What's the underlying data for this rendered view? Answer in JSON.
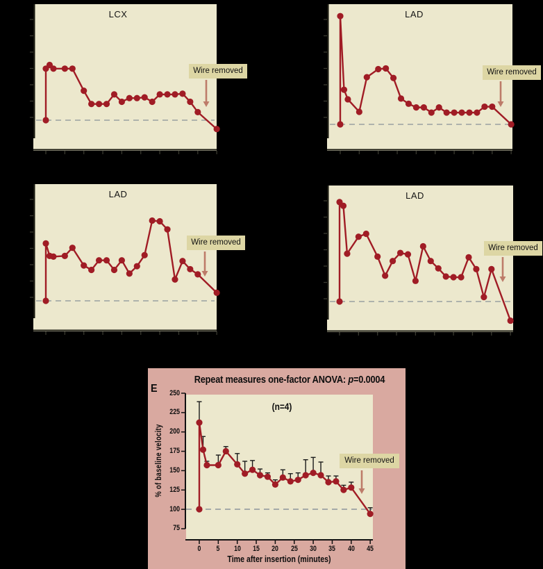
{
  "labels": {
    "wire_removed": "Wire removed"
  },
  "colors": {
    "background": "#000000",
    "panel_bg": "#ece8cd",
    "pink_panel_bg": "#d9a9a0",
    "annotation_bg": "#ddd6a4",
    "series_red": "#a01c25",
    "arrow": "#bd7b69",
    "baseline_dash": "#9aa0a2",
    "axis": "#17170f",
    "error_bar": "#1a1a1a"
  },
  "anova_panel": {
    "panel_letter": "E",
    "title_prefix": "Repeat measures one-factor ANOVA: ",
    "title_p_symbol": "p",
    "title_p_value": "=0.0004",
    "sample_size": "(n=4)",
    "ylabel": "% of baseline velocity",
    "xlabel": "Time after insertion (minutes)"
  },
  "chart_data": [
    {
      "position": "top-left",
      "type": "line",
      "title": "LCX",
      "x_minutes": [
        0,
        0,
        1,
        2,
        5,
        7,
        10,
        12,
        14,
        16,
        18,
        20,
        22,
        24,
        26,
        28,
        30,
        32,
        34,
        36,
        38,
        40,
        45
      ],
      "values_pct_baseline": [
        100,
        170,
        175,
        170,
        170,
        170,
        140,
        122,
        122,
        122,
        135,
        125,
        130,
        130,
        131,
        125,
        135,
        135,
        135,
        136,
        125,
        111,
        88
      ],
      "baseline": 100,
      "annotation": "Wire removed",
      "annotation_arrow_at_minute": 42,
      "ylim": [
        60,
        260
      ],
      "xlim": [
        0,
        45
      ],
      "grid": false
    },
    {
      "position": "top-right",
      "type": "line",
      "title": "LAD",
      "x_minutes": [
        0,
        0,
        1,
        2,
        5,
        7,
        10,
        12,
        14,
        16,
        18,
        20,
        22,
        24,
        26,
        28,
        30,
        32,
        34,
        36,
        38,
        40,
        45
      ],
      "values_pct_baseline": [
        100,
        247,
        147,
        134,
        117,
        164,
        175,
        176,
        163,
        135,
        128,
        123,
        123,
        116,
        123,
        116,
        116,
        116,
        116,
        116,
        124,
        124,
        100
      ],
      "baseline": 100,
      "annotation": "Wire removed",
      "annotation_arrow_at_minute": 42,
      "ylim": [
        60,
        260
      ],
      "xlim": [
        0,
        45
      ],
      "grid": false
    },
    {
      "position": "middle-left",
      "type": "line",
      "title": "LAD",
      "x_minutes": [
        0,
        0,
        1,
        2,
        5,
        7,
        10,
        12,
        14,
        16,
        18,
        20,
        22,
        24,
        26,
        28,
        30,
        32,
        34,
        36,
        38,
        40,
        45
      ],
      "values_pct_baseline": [
        100,
        178,
        161,
        160,
        161,
        172,
        148,
        142,
        155,
        155,
        142,
        155,
        137,
        147,
        162,
        209,
        208,
        197,
        129,
        154,
        143,
        136,
        111
      ],
      "baseline": 100,
      "annotation": "Wire removed",
      "annotation_arrow_at_minute": 42,
      "ylim": [
        60,
        260
      ],
      "xlim": [
        0,
        45
      ],
      "grid": false
    },
    {
      "position": "middle-right",
      "type": "line",
      "title": "LAD",
      "x_minutes": [
        0,
        0,
        1,
        2,
        5,
        7,
        10,
        12,
        14,
        16,
        18,
        20,
        22,
        24,
        26,
        28,
        30,
        32,
        34,
        36,
        38,
        40,
        45
      ],
      "values_pct_baseline": [
        100,
        235,
        230,
        165,
        188,
        192,
        161,
        135,
        155,
        166,
        164,
        128,
        175,
        155,
        145,
        134,
        133,
        133,
        160,
        144,
        106,
        144,
        74
      ],
      "baseline": 100,
      "annotation": "Wire removed",
      "annotation_arrow_at_minute": 42,
      "ylim": [
        60,
        260
      ],
      "xlim": [
        0,
        45
      ],
      "grid": false
    },
    {
      "position": "bottom",
      "type": "line",
      "title": "Repeat measures one-factor ANOVA: p=0.0004",
      "subtitle": "(n=4)",
      "panel_letter": "E",
      "xlabel": "Time after insertion (minutes)",
      "ylabel": "% of baseline velocity",
      "x_minutes": [
        0,
        0,
        1,
        2,
        5,
        7,
        10,
        12,
        14,
        16,
        18,
        20,
        22,
        24,
        26,
        28,
        30,
        32,
        34,
        36,
        38,
        40,
        45
      ],
      "values_pct_baseline": [
        100,
        212,
        177,
        157,
        157,
        175,
        158,
        146,
        151,
        144,
        142,
        132,
        141,
        136,
        138,
        144,
        147,
        144,
        135,
        136,
        125,
        128,
        94
      ],
      "error_bar_tops": [
        null,
        239,
        194,
        162,
        170,
        181,
        172,
        162,
        163,
        152,
        147,
        138,
        151,
        146,
        147,
        164,
        167,
        161,
        143,
        143,
        131,
        135,
        102
      ],
      "baseline": 100,
      "annotation": "Wire removed",
      "annotation_arrow_at_minute": 43,
      "yticks": [
        250,
        225,
        200,
        175,
        150,
        125,
        100,
        75
      ],
      "xticks": [
        0,
        5,
        10,
        15,
        20,
        25,
        30,
        35,
        40,
        45
      ],
      "ylim": [
        75,
        250
      ],
      "xlim": [
        0,
        45
      ],
      "legend": "none",
      "grid": false
    }
  ]
}
